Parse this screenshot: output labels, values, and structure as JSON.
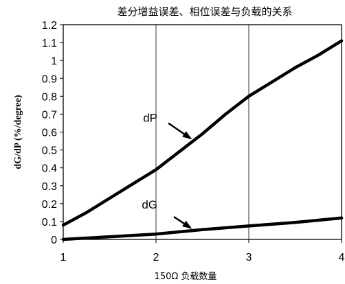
{
  "chart_data": {
    "type": "line",
    "title": "差分增益误差、相位误差与负载的关系",
    "xlabel": "150Ω 负载数量",
    "ylabel": "dG/dP (%/degree)",
    "xlim": [
      1,
      4
    ],
    "ylim": [
      0,
      1.2
    ],
    "x_ticks": [
      "1",
      "2",
      "3",
      "4"
    ],
    "y_ticks": [
      "0",
      "0.1",
      "0.2",
      "0.3",
      "0.4",
      "0.5",
      "0.6",
      "0.7",
      "0.8",
      "0.9",
      "1",
      "1.1",
      "1.2"
    ],
    "grid": "vertical",
    "series": [
      {
        "name": "dP",
        "x": [
          1,
          1.25,
          1.5,
          1.75,
          2,
          2.25,
          2.5,
          2.75,
          3,
          3.25,
          3.5,
          3.75,
          4
        ],
        "values": [
          0.08,
          0.15,
          0.23,
          0.31,
          0.39,
          0.49,
          0.59,
          0.7,
          0.8,
          0.88,
          0.96,
          1.03,
          1.11
        ]
      },
      {
        "name": "dG",
        "x": [
          1,
          1.5,
          2,
          2.5,
          3,
          3.5,
          4
        ],
        "values": [
          0.0,
          0.015,
          0.03,
          0.055,
          0.075,
          0.095,
          0.12
        ]
      }
    ],
    "annotations": [
      {
        "text": "dP",
        "series": "dP",
        "points_to_x": 2.4
      },
      {
        "text": "dG",
        "series": "dG",
        "points_to_x": 2.4
      }
    ]
  },
  "colors": {
    "line": "#000000",
    "grid": "#000000",
    "background": "#ffffff"
  }
}
